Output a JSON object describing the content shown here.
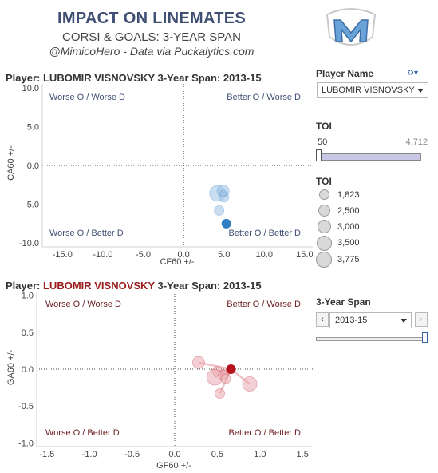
{
  "header": {
    "title": "IMPACT ON LINEMATES",
    "subtitle": "CORSI & GOALS: 3-YEAR SPAN",
    "credit": "@MimicoHero - Data via Puckalytics.com"
  },
  "colors": {
    "corsi": "#2f7fc1",
    "corsi_light": "#9cc3e6",
    "goals": "#b5121b",
    "goals_light": "#e9a9ae",
    "title": "#3f4f74"
  },
  "controls": {
    "player_label": "Player Name",
    "player_value": "LUBOMIR VISNOVSKY",
    "toi_label": "TOI",
    "toi_min": "50",
    "toi_max": "4,712",
    "toi_legend_label": "TOI",
    "toi_legend": [
      "1,823",
      "2,500",
      "3,000",
      "3,500",
      "3,775"
    ],
    "span_label": "3-Year Span",
    "span_value": "2013-15"
  },
  "corsi_panel": {
    "title_prefix": "Player: ",
    "player": "LUBOMIR VISNOVSKY",
    "title_suffix": " 3-Year Span: 2013-15",
    "quadrants": {
      "tl": "Worse O / Worse D",
      "tr": "Better O / Worse D",
      "bl": "Worse O / Better D",
      "br": "Better O / Better D"
    }
  },
  "goals_panel": {
    "title_prefix": "Player: ",
    "player": "LUBOMIR VISNOVSKY",
    "title_suffix": " 3-Year Span: 2013-15",
    "quadrants": {
      "tl": "Worse O / Worse D",
      "tr": "Better O / Worse D",
      "bl": "Worse O / Better D",
      "br": "Better O / Better D"
    }
  },
  "chart_data": [
    {
      "type": "scatter",
      "title": "Player: LUBOMIR VISNOVSKY 3-Year Span: 2013-15",
      "xlabel": "CF60 +/-",
      "ylabel": "CA60 +/-",
      "xlim": [
        -17.5,
        16.0
      ],
      "ylim": [
        -10.5,
        10.5
      ],
      "xticks": [
        "-15.0",
        "-10.0",
        "-5.0",
        "0.0",
        "5.0",
        "10.0",
        "15.0"
      ],
      "xtick_values": [
        -15,
        -10,
        -5,
        0,
        5,
        10,
        15
      ],
      "yticks": [
        "10.0",
        "5.0",
        "0.0",
        "-5.0",
        "-10.0"
      ],
      "ytick_values": [
        10,
        5,
        0,
        -5,
        -10
      ],
      "grid": false,
      "points": [
        {
          "x": 4.2,
          "y": -3.6,
          "toi": 3775,
          "highlight": false
        },
        {
          "x": 4.9,
          "y": -3.3,
          "toi": 3000,
          "highlight": false
        },
        {
          "x": 5.0,
          "y": -4.1,
          "toi": 2500,
          "highlight": false
        },
        {
          "x": 4.9,
          "y": -3.6,
          "toi": 1823,
          "highlight": false
        },
        {
          "x": 4.4,
          "y": -5.8,
          "toi": 2500,
          "highlight": false
        },
        {
          "x": 5.3,
          "y": -7.5,
          "toi": 2500,
          "highlight": true
        }
      ]
    },
    {
      "type": "scatter",
      "title": "Player: LUBOMIR VISNOVSKY 3-Year Span: 2013-15",
      "xlabel": "GF60 +/-",
      "ylabel": "GA60 +/-",
      "xlim": [
        -1.62,
        1.62
      ],
      "ylim": [
        -1.05,
        1.05
      ],
      "xticks": [
        "-1.5",
        "-1.0",
        "-0.5",
        "0.0",
        "0.5",
        "1.0",
        "1.5"
      ],
      "xtick_values": [
        -1.5,
        -1.0,
        -0.5,
        0,
        0.5,
        1.0,
        1.5
      ],
      "yticks": [
        "1.0",
        "0.5",
        "0.0",
        "-0.5",
        "-1.0"
      ],
      "ytick_values": [
        1.0,
        0.5,
        0,
        -0.5,
        -1.0
      ],
      "grid": false,
      "points": [
        {
          "x": 0.28,
          "y": 0.09,
          "toi": 3000,
          "highlight": false
        },
        {
          "x": 0.5,
          "y": -0.03,
          "toi": 2500,
          "highlight": false
        },
        {
          "x": 0.47,
          "y": -0.11,
          "toi": 3775,
          "highlight": false
        },
        {
          "x": 0.57,
          "y": -0.08,
          "toi": 2500,
          "highlight": false
        },
        {
          "x": 0.6,
          "y": -0.13,
          "toi": 2500,
          "highlight": false
        },
        {
          "x": 0.88,
          "y": -0.2,
          "toi": 3500,
          "highlight": false
        },
        {
          "x": 0.53,
          "y": -0.33,
          "toi": 2500,
          "highlight": false
        },
        {
          "x": 0.66,
          "y": 0.0,
          "toi": 2500,
          "highlight": true
        }
      ]
    }
  ]
}
